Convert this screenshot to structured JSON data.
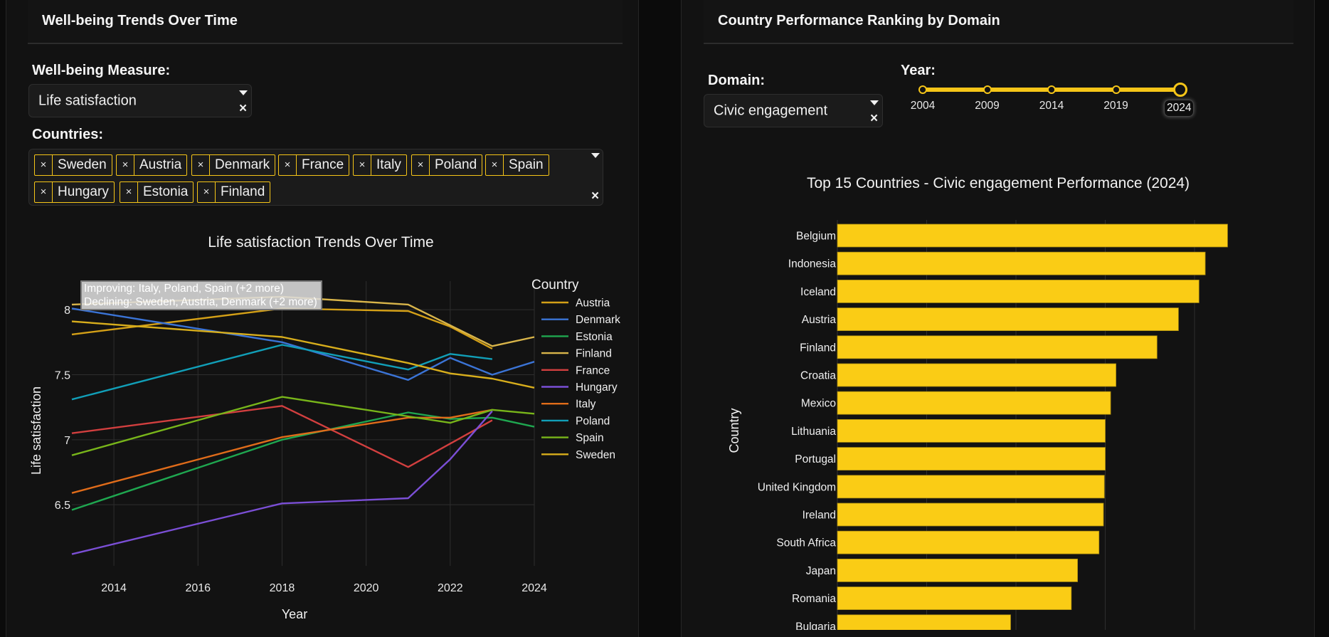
{
  "left": {
    "title": "Well-being Trends Over Time",
    "measure_label": "Well-being Measure:",
    "measure_value": "Life satisfaction",
    "countries_label": "Countries:",
    "selected_countries": [
      "Sweden",
      "Austria",
      "Denmark",
      "France",
      "Italy",
      "Poland",
      "Spain",
      "Hungary",
      "Estonia",
      "Finland"
    ],
    "chip_remove": "×",
    "clear_icon": "×",
    "tooltip": {
      "improving": "Improving: Italy, Poland, Spain (+2 more)",
      "declining": "Declining: Sweden, Austria, Denmark (+2 more)"
    }
  },
  "right": {
    "title": "Country Performance Ranking by Domain",
    "domain_label": "Domain:",
    "domain_value": "Civic engagement",
    "year_label": "Year:",
    "year_marks": [
      "2004",
      "2009",
      "2014",
      "2019",
      "2024"
    ],
    "year_selected": "2024",
    "year_slider_fraction": 1.0
  },
  "chart_data": [
    {
      "type": "line",
      "title": "Life satisfaction Trends Over Time",
      "xlabel": "Year",
      "ylabel": "Life satisfaction",
      "xlim": [
        2013,
        2024
      ],
      "ylim": [
        6.03,
        8.22
      ],
      "x_ticks": [
        2014,
        2016,
        2018,
        2020,
        2022,
        2024
      ],
      "y_ticks": [
        6.5,
        7,
        7.5,
        8
      ],
      "y_tick_labels": [
        "6.5",
        "7",
        "7.5",
        "8"
      ],
      "grid": true,
      "legend_title": "Country",
      "legend_position": "right",
      "series": [
        {
          "name": "Austria",
          "color": "#d4a017",
          "x": [
            2013,
            2018,
            2021,
            2022,
            2023
          ],
          "y": [
            7.81,
            8.01,
            7.99,
            7.87,
            7.7
          ]
        },
        {
          "name": "Denmark",
          "color": "#3b74d6",
          "x": [
            2013,
            2018,
            2021,
            2022,
            2023,
            2024
          ],
          "y": [
            8.01,
            7.75,
            7.46,
            7.63,
            7.5,
            7.6
          ]
        },
        {
          "name": "Estonia",
          "color": "#1fa750",
          "x": [
            2013,
            2018,
            2021,
            2022,
            2023,
            2024
          ],
          "y": [
            6.46,
            7.0,
            7.21,
            7.16,
            7.17,
            7.1
          ]
        },
        {
          "name": "Finland",
          "color": "#d9b54a",
          "x": [
            2013,
            2018,
            2021,
            2022,
            2023,
            2024
          ],
          "y": [
            8.04,
            8.1,
            8.04,
            7.88,
            7.72,
            7.79
          ]
        },
        {
          "name": "France",
          "color": "#d23f3f",
          "x": [
            2013,
            2018,
            2021,
            2023
          ],
          "y": [
            7.05,
            7.26,
            6.79,
            7.15
          ]
        },
        {
          "name": "Hungary",
          "color": "#7b4fd6",
          "x": [
            2013,
            2018,
            2021,
            2022,
            2023
          ],
          "y": [
            6.12,
            6.51,
            6.55,
            6.85,
            7.22
          ]
        },
        {
          "name": "Italy",
          "color": "#e06c1a",
          "x": [
            2013,
            2018,
            2021,
            2022,
            2023
          ],
          "y": [
            6.59,
            7.02,
            7.17,
            7.17,
            7.23
          ]
        },
        {
          "name": "Poland",
          "color": "#119fb8",
          "x": [
            2013,
            2018,
            2021,
            2022,
            2023
          ],
          "y": [
            7.31,
            7.73,
            7.54,
            7.66,
            7.62
          ]
        },
        {
          "name": "Spain",
          "color": "#78b51a",
          "x": [
            2013,
            2018,
            2021,
            2022,
            2023,
            2024
          ],
          "y": [
            6.88,
            7.33,
            7.18,
            7.13,
            7.23,
            7.2
          ]
        },
        {
          "name": "Sweden",
          "color": "#d8ae1c",
          "x": [
            2013,
            2018,
            2021,
            2022,
            2023,
            2024
          ],
          "y": [
            7.91,
            7.79,
            7.59,
            7.51,
            7.47,
            7.4
          ]
        }
      ]
    },
    {
      "type": "bar",
      "orientation": "horizontal",
      "title": "Top 15 Countries - Civic engagement Performance (2024)",
      "ylabel": "Country",
      "xlabel": "",
      "bar_color": "#facc15",
      "note": "x-axis tick labels not visible; values in gridline units",
      "xlim": [
        0,
        4.6
      ],
      "grid": true,
      "categories": [
        "Belgium",
        "Indonesia",
        "Iceland",
        "Austria",
        "Finland",
        "Croatia",
        "Mexico",
        "Lithuania",
        "Portugal",
        "United Kingdom",
        "Ireland",
        "South Africa",
        "Japan",
        "Romania",
        "Bulgaria"
      ],
      "values": [
        4.37,
        4.12,
        4.05,
        3.82,
        3.58,
        3.12,
        3.06,
        3.0,
        3.0,
        2.99,
        2.98,
        2.93,
        2.69,
        2.62,
        1.94
      ]
    }
  ]
}
